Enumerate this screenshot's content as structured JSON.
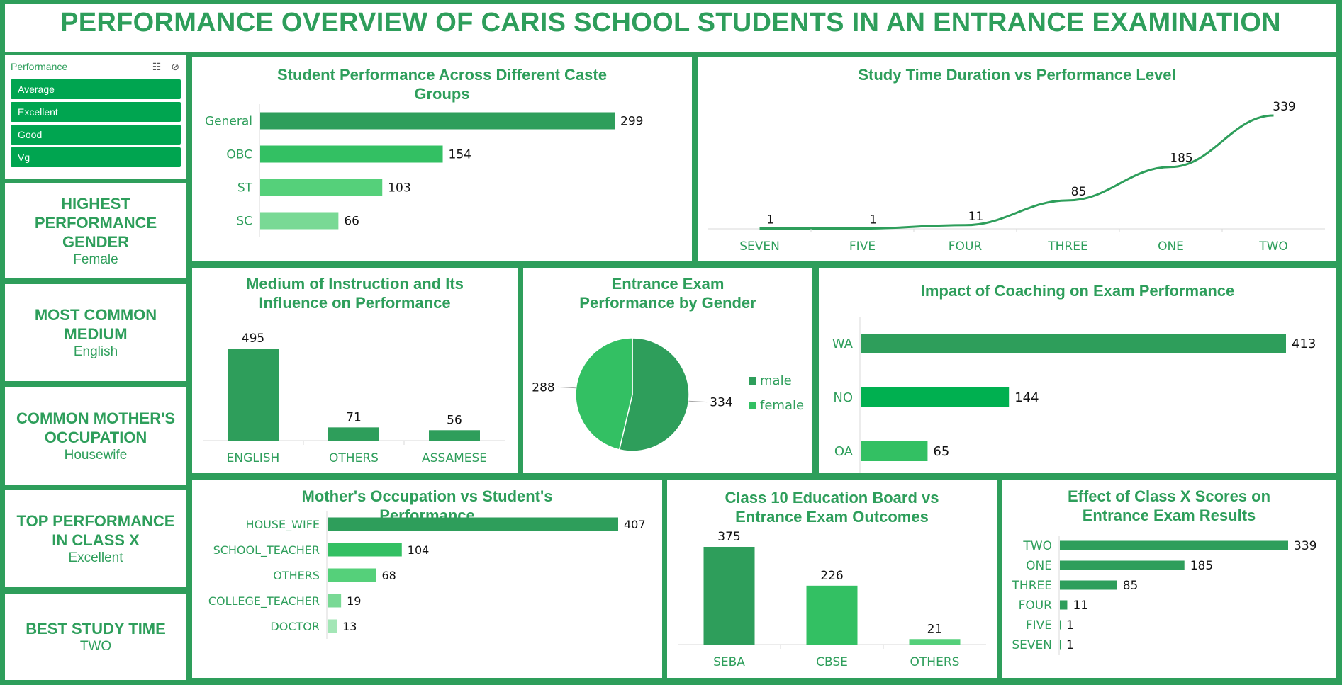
{
  "dashboard_title": "PERFORMANCE OVERVIEW OF CARIS SCHOOL STUDENTS IN AN ENTRANCE EXAMINATION",
  "slicer": {
    "title": "Performance",
    "icons": [
      "multi-select-icon",
      "clear-filter-icon"
    ],
    "items": [
      "Average",
      "Excellent",
      "Good",
      "Vg"
    ],
    "item_color": "#00a550"
  },
  "kpis": [
    {
      "label": "HIGHEST PERFORMANCE GENDER",
      "value": "Female"
    },
    {
      "label": "MOST COMMON MEDIUM",
      "value": "English"
    },
    {
      "label": "COMMON MOTHER'S OCCUPATION",
      "value": "Housewife"
    },
    {
      "label": "TOP PERFORMANCE IN CLASS X",
      "value": "Excellent"
    },
    {
      "label": "BEST STUDY TIME",
      "value": "TWO"
    }
  ],
  "colors": {
    "primary": "#2e9e5b",
    "bright": "#00b050",
    "medium": "#33c063",
    "light": "#55d07a",
    "lighter": "#79d995",
    "lightest": "#a3e6b6",
    "label": "#2e9e5b",
    "value": "#111111"
  },
  "chart_data": [
    {
      "id": "caste",
      "type": "bar",
      "orientation": "horizontal",
      "title": "Student Performance Across Different Caste Groups",
      "categories": [
        "General",
        "OBC",
        "ST",
        "SC"
      ],
      "values": [
        299,
        154,
        103,
        66
      ],
      "bar_colors": [
        "#2e9e5b",
        "#33c063",
        "#55d07a",
        "#79d995"
      ]
    },
    {
      "id": "study_time",
      "type": "line",
      "title": "Study Time Duration vs Performance Level",
      "categories": [
        "SEVEN",
        "FIVE",
        "FOUR",
        "THREE",
        "ONE",
        "TWO"
      ],
      "values": [
        1,
        1,
        11,
        85,
        185,
        339
      ]
    },
    {
      "id": "medium",
      "type": "bar",
      "orientation": "vertical",
      "title": "Medium of Instruction and Its Influence on Performance",
      "categories": [
        "ENGLISH",
        "OTHERS",
        "ASSAMESE"
      ],
      "values": [
        495,
        71,
        56
      ],
      "bar_colors": [
        "#2e9e5b",
        "#2e9e5b",
        "#2e9e5b"
      ]
    },
    {
      "id": "gender",
      "type": "pie",
      "title": "Entrance Exam Performance by Gender",
      "labels": [
        "male",
        "female"
      ],
      "values": [
        334,
        288
      ],
      "slice_colors": [
        "#2e9e5b",
        "#33c063"
      ],
      "legend_position": "right"
    },
    {
      "id": "coaching",
      "type": "bar",
      "orientation": "horizontal",
      "title": "Impact of Coaching on Exam Performance",
      "categories": [
        "WA",
        "NO",
        "OA"
      ],
      "values": [
        413,
        144,
        65
      ],
      "bar_colors": [
        "#2e9e5b",
        "#00b050",
        "#33c063"
      ]
    },
    {
      "id": "mother_occ",
      "type": "bar",
      "orientation": "horizontal",
      "title": "Mother's Occupation vs Student's Performance",
      "categories": [
        "HOUSE_WIFE",
        "SCHOOL_TEACHER",
        "OTHERS",
        "COLLEGE_TEACHER",
        "DOCTOR"
      ],
      "values": [
        407,
        104,
        68,
        19,
        13
      ],
      "bar_colors": [
        "#2e9e5b",
        "#33c063",
        "#55d07a",
        "#79d995",
        "#a3e6b6"
      ]
    },
    {
      "id": "board",
      "type": "bar",
      "orientation": "vertical",
      "title": "Class 10 Education Board vs Entrance Exam Outcomes",
      "categories": [
        "SEBA",
        "CBSE",
        "OTHERS"
      ],
      "values": [
        375,
        226,
        21
      ],
      "bar_colors": [
        "#2e9e5b",
        "#33c063",
        "#55d07a"
      ]
    },
    {
      "id": "class_x",
      "type": "bar",
      "orientation": "horizontal",
      "title": "Effect of Class X Scores on Entrance Exam Results",
      "categories": [
        "TWO",
        "ONE",
        "THREE",
        "FOUR",
        "FIVE",
        "SEVEN"
      ],
      "values": [
        339,
        185,
        85,
        11,
        1,
        1
      ],
      "bar_colors": [
        "#2e9e5b",
        "#2e9e5b",
        "#2e9e5b",
        "#2e9e5b",
        "#2e9e5b",
        "#2e9e5b"
      ]
    }
  ]
}
